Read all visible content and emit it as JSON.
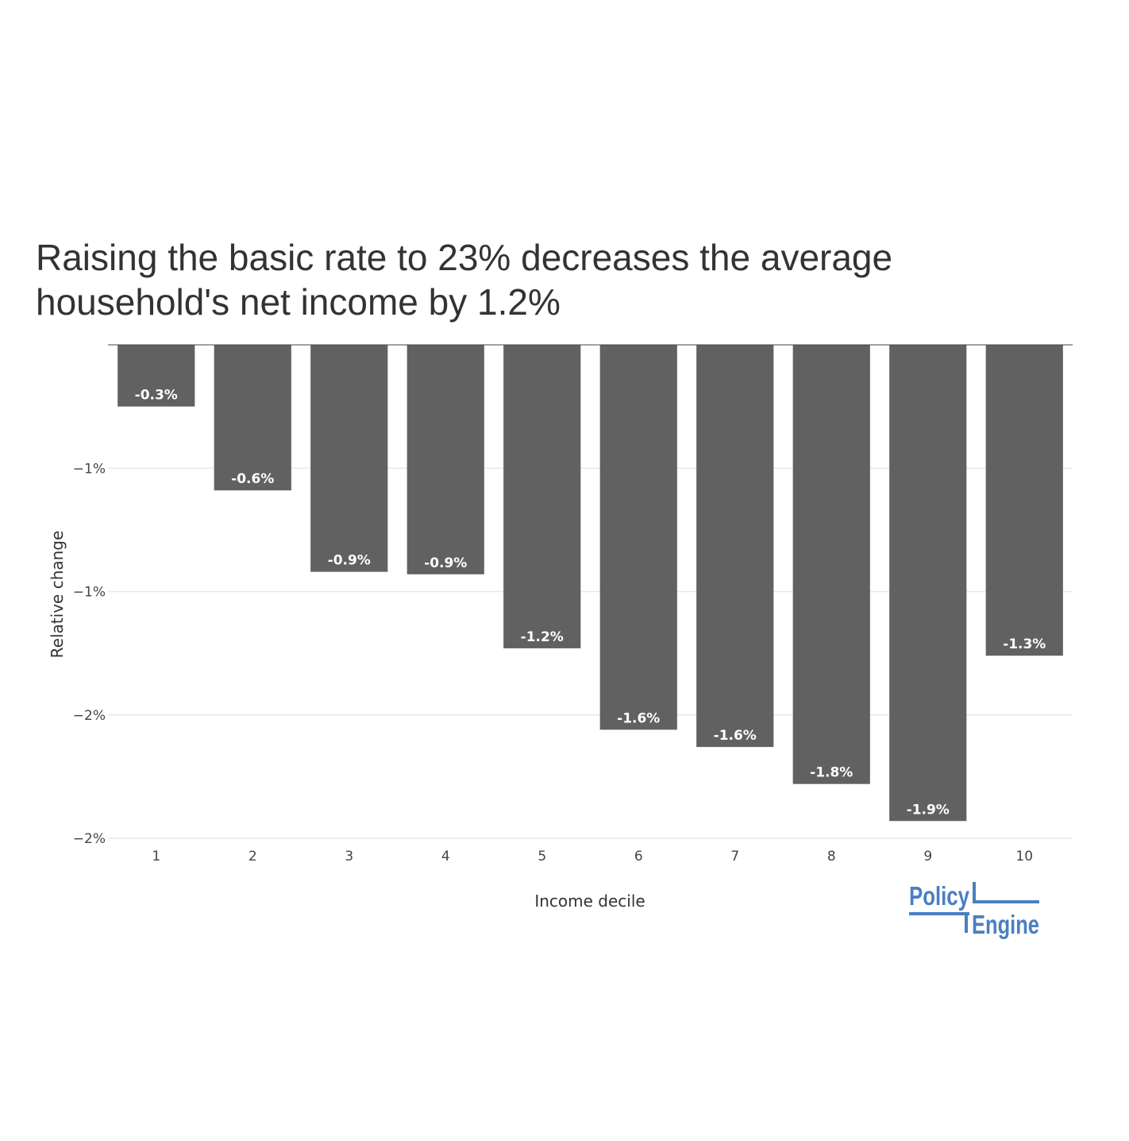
{
  "chart_data": {
    "type": "bar",
    "title_lines": [
      "Raising the basic rate to 23% decreases the average",
      "household's net income by 1.2%"
    ],
    "xlabel": "Income decile",
    "ylabel": "Relative change",
    "categories": [
      "1",
      "2",
      "3",
      "4",
      "5",
      "6",
      "7",
      "8",
      "9",
      "10"
    ],
    "values": [
      -0.25,
      -0.59,
      -0.92,
      -0.93,
      -1.23,
      -1.56,
      -1.63,
      -1.78,
      -1.93,
      -1.26
    ],
    "data_labels": [
      "-0.3%",
      "-0.6%",
      "-0.9%",
      "-0.9%",
      "-1.2%",
      "-1.6%",
      "-1.6%",
      "-1.8%",
      "-1.9%",
      "-1.3%"
    ],
    "y_ticks": [
      {
        "value": -0.5,
        "label": "−1%"
      },
      {
        "value": -1.0,
        "label": "−1%"
      },
      {
        "value": -1.5,
        "label": "−2%"
      },
      {
        "value": -2.0,
        "label": "−2%"
      }
    ],
    "ylim": [
      -2.0,
      0
    ],
    "grid": true,
    "bar_color": "#616161",
    "gridline_color": "#e8e8e8"
  },
  "logo": {
    "line1": "Policy",
    "line2": "Engine",
    "color": "#4a7fc1"
  }
}
